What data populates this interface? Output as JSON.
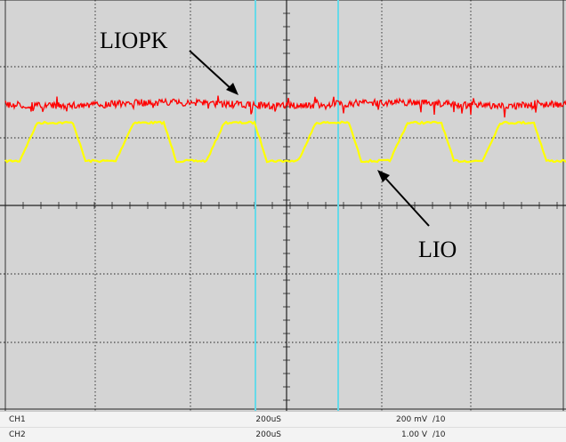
{
  "annotations": {
    "top_signal": "LIOPK",
    "bottom_signal": "LIO"
  },
  "channels": [
    {
      "name": "CH1",
      "timebase": "200uS",
      "volts_div": "200 mV",
      "div_setting": "/10",
      "color": "#ff0000"
    },
    {
      "name": "CH2",
      "timebase": "200uS",
      "volts_div": "1.00 V",
      "div_setting": "/10",
      "color": "#ffff00"
    }
  ],
  "colors": {
    "grid_background": "#d4d4d4",
    "grid_lines": "#222222",
    "cursor": "#66d9e8"
  }
}
